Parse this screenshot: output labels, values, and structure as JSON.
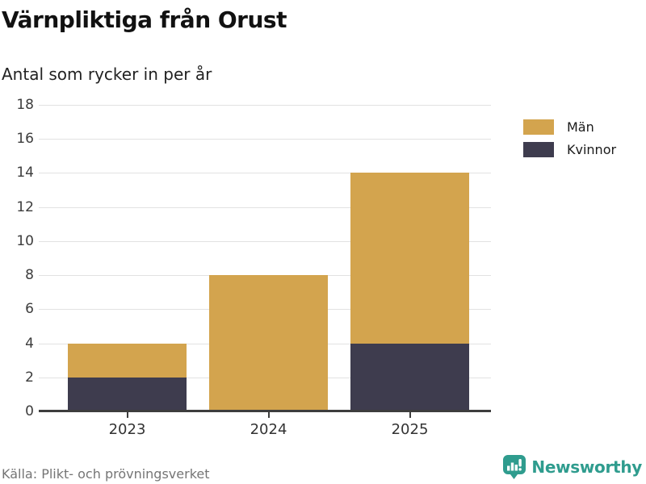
{
  "header": {
    "title": "Värnpliktiga från Orust",
    "subtitle": "Antal som rycker in per år"
  },
  "chart_data": {
    "type": "bar",
    "stacked": true,
    "title": "Värnpliktiga från Orust",
    "subtitle": "Antal som rycker in per år",
    "categories": [
      "2023",
      "2024",
      "2025"
    ],
    "series": [
      {
        "name": "Män",
        "color": "#d3a44e",
        "values": [
          2,
          8,
          10
        ]
      },
      {
        "name": "Kvinnor",
        "color": "#3e3c4e",
        "values": [
          2,
          0,
          4
        ]
      }
    ],
    "totals": [
      4,
      8,
      14
    ],
    "xlabel": "",
    "ylabel": "",
    "ylim": [
      0,
      18
    ],
    "yticks": [
      0,
      2,
      4,
      6,
      8,
      10,
      12,
      14,
      16,
      18
    ],
    "grid": true,
    "legend_position": "right",
    "axis_color": "#3d3d3d",
    "gridline_color": "#e2e2e2"
  },
  "footer": {
    "source": "Källa: Plikt- och prövningsverket",
    "brand": "Newsworthy",
    "brand_color": "#2f9c8e"
  }
}
